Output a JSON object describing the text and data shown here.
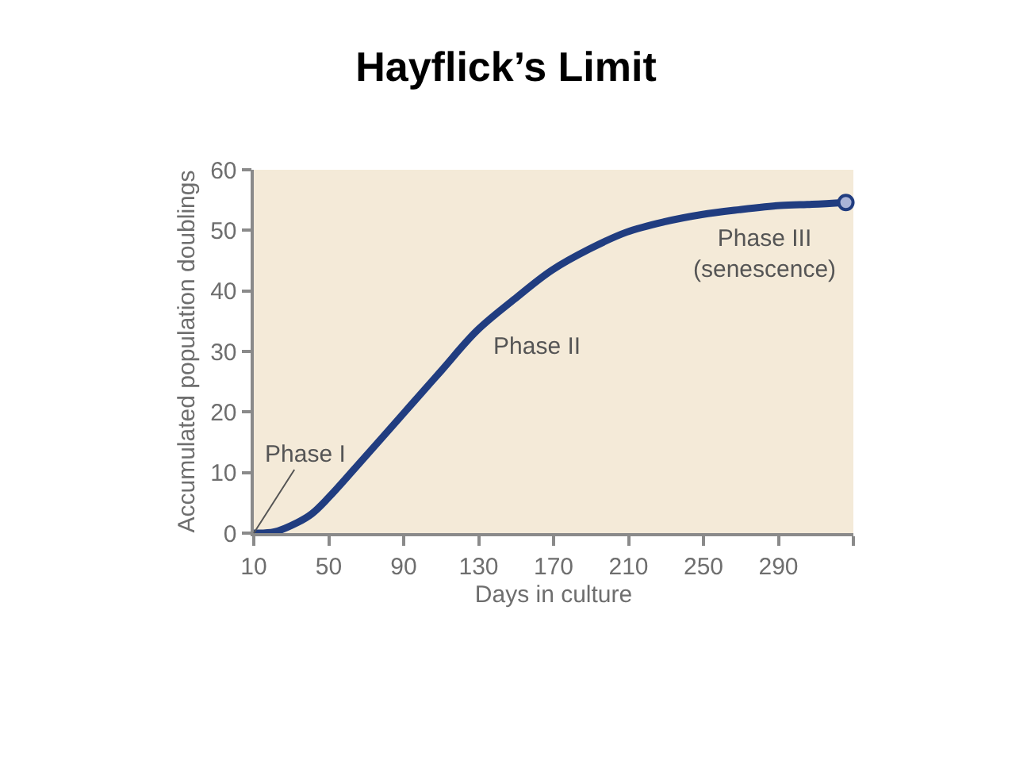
{
  "chart_data": {
    "type": "line",
    "title": "Hayflick’s Limit",
    "xlabel": "Days in culture",
    "ylabel": "Accumulated population doublings",
    "x": [
      10,
      21,
      33,
      41,
      50,
      64,
      90,
      110,
      129,
      149,
      169,
      189,
      209,
      229,
      249,
      269,
      291,
      308,
      326
    ],
    "series": [
      {
        "color": "#213d80",
        "values": [
          0,
          0.2,
          1.7,
          3.2,
          5.9,
          10.7,
          19.8,
          26.8,
          33.4,
          38.6,
          43.4,
          46.9,
          49.7,
          51.4,
          52.6,
          53.4,
          54.1,
          54.3,
          54.6
        ]
      },
      {
        "type": "scatter",
        "x": [
          326
        ],
        "values": [
          54.6
        ],
        "color": "#aab4d8"
      }
    ],
    "xlim": [
      10,
      330
    ],
    "xticks": [
      10,
      50,
      90,
      130,
      170,
      210,
      250,
      290,
      {
        "value": 330,
        "label": null
      }
    ],
    "ylim": [
      0,
      60
    ],
    "yticks": [
      0,
      10,
      20,
      30,
      40,
      50,
      60
    ],
    "annotations": [
      {
        "text": "Phase I",
        "x": 10,
        "y": 0
      },
      "Phase II",
      "Phase III\n(senescence)"
    ],
    "grid": false,
    "line_style": "solid"
  }
}
